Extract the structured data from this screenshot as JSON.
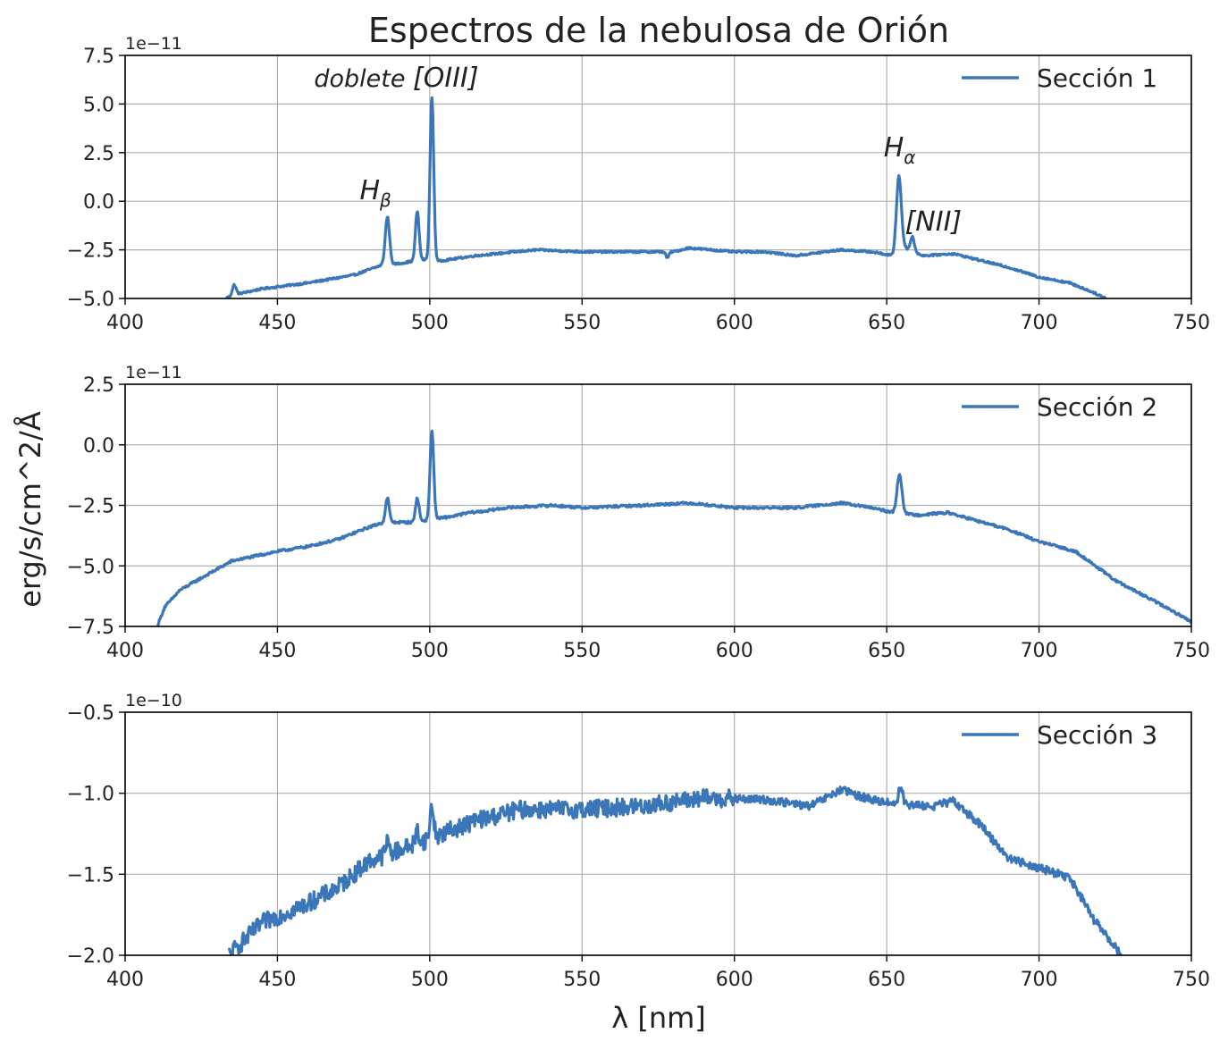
{
  "title": "Espectros de la nebulosa de Orión",
  "ylabel": "erg/s/cm^2/Å",
  "xlabel": "λ [nm]",
  "color": "#3a76b8",
  "chart_data": [
    {
      "type": "line",
      "legend": "Sección 1",
      "legend_position": "top-right",
      "grid": true,
      "exponent_label": "1e−11",
      "xlim": [
        400,
        750
      ],
      "ylim": [
        -5.0,
        7.5
      ],
      "xticks": [
        "400",
        "450",
        "500",
        "550",
        "600",
        "650",
        "700",
        "750"
      ],
      "yticks": [
        "−5.0",
        "−2.5",
        "0.0",
        "2.5",
        "5.0",
        "7.5"
      ],
      "ytick_values": [
        -5.0,
        -2.5,
        0.0,
        2.5,
        5.0,
        7.5
      ],
      "baseline": [
        [
          433,
          -5.0
        ],
        [
          436,
          -4.8
        ],
        [
          445,
          -4.5
        ],
        [
          460,
          -4.2
        ],
        [
          475,
          -3.8
        ],
        [
          484,
          -3.3
        ],
        [
          490,
          -3.2
        ],
        [
          498,
          -3.0
        ],
        [
          502,
          -3.1
        ],
        [
          515,
          -2.8
        ],
        [
          535,
          -2.5
        ],
        [
          550,
          -2.6
        ],
        [
          580,
          -2.6
        ],
        [
          585,
          -2.4
        ],
        [
          600,
          -2.6
        ],
        [
          610,
          -2.6
        ],
        [
          620,
          -2.8
        ],
        [
          635,
          -2.5
        ],
        [
          645,
          -2.6
        ],
        [
          652,
          -2.8
        ],
        [
          656,
          -2.4
        ],
        [
          662,
          -2.8
        ],
        [
          672,
          -2.7
        ],
        [
          690,
          -3.4
        ],
        [
          700,
          -3.9
        ],
        [
          710,
          -4.2
        ],
        [
          718,
          -4.7
        ],
        [
          722,
          -5.0
        ]
      ],
      "peaks": [
        [
          435.8,
          -4.3,
          0.6
        ],
        [
          486.1,
          -0.8,
          0.7
        ],
        [
          495.9,
          -0.5,
          0.6
        ],
        [
          500.7,
          5.4,
          0.6
        ],
        [
          654.0,
          1.3,
          0.8
        ],
        [
          658.4,
          -1.8,
          0.6
        ],
        [
          578.0,
          -2.9,
          0.5
        ]
      ],
      "noise": 0.05,
      "annotations": [
        {
          "name": "annotation-oiii-doublet",
          "prefix": "doblete",
          "text": "[OIII]",
          "x": 462,
          "y": 5.9
        },
        {
          "name": "annotation-h-beta",
          "text": "H",
          "sub": "β",
          "x": 477,
          "y": 0.1
        },
        {
          "name": "annotation-h-alpha",
          "text": "H",
          "sub": "α",
          "x": 649,
          "y": 2.3
        },
        {
          "name": "annotation-nii",
          "text": "[NII]",
          "x": 656,
          "y": -1.5
        }
      ]
    },
    {
      "type": "line",
      "legend": "Sección 2",
      "legend_position": "top-right",
      "grid": true,
      "exponent_label": "1e−11",
      "xlim": [
        400,
        750
      ],
      "ylim": [
        -7.5,
        2.5
      ],
      "xticks": [
        "400",
        "450",
        "500",
        "550",
        "600",
        "650",
        "700",
        "750"
      ],
      "yticks": [
        "−7.5",
        "−5.0",
        "−2.5",
        "0.0",
        "2.5"
      ],
      "ytick_values": [
        -7.5,
        -5.0,
        -2.5,
        0.0,
        2.5
      ],
      "baseline": [
        [
          410.5,
          -7.5
        ],
        [
          413,
          -6.7
        ],
        [
          418,
          -6.0
        ],
        [
          425,
          -5.5
        ],
        [
          435,
          -4.8
        ],
        [
          450,
          -4.4
        ],
        [
          460,
          -4.2
        ],
        [
          470,
          -3.9
        ],
        [
          480,
          -3.4
        ],
        [
          485,
          -3.2
        ],
        [
          495,
          -3.2
        ],
        [
          500,
          -3.1
        ],
        [
          510,
          -2.9
        ],
        [
          525,
          -2.6
        ],
        [
          540,
          -2.5
        ],
        [
          550,
          -2.6
        ],
        [
          570,
          -2.5
        ],
        [
          585,
          -2.4
        ],
        [
          600,
          -2.6
        ],
        [
          620,
          -2.6
        ],
        [
          635,
          -2.4
        ],
        [
          645,
          -2.6
        ],
        [
          652,
          -2.8
        ],
        [
          660,
          -2.9
        ],
        [
          670,
          -2.8
        ],
        [
          690,
          -3.5
        ],
        [
          700,
          -4.0
        ],
        [
          712,
          -4.4
        ],
        [
          725,
          -5.6
        ],
        [
          740,
          -6.6
        ],
        [
          750,
          -7.3
        ]
      ],
      "peaks": [
        [
          486.1,
          -2.2,
          0.6
        ],
        [
          495.9,
          -2.2,
          0.6
        ],
        [
          500.7,
          0.6,
          0.6
        ],
        [
          654.2,
          -1.2,
          0.8
        ],
        [
          513.0,
          -2.8,
          2.0
        ]
      ],
      "noise": 0.05,
      "annotations": []
    },
    {
      "type": "line",
      "legend": "Sección 3",
      "legend_position": "top-right",
      "grid": true,
      "exponent_label": "1e−10",
      "xlim": [
        400,
        750
      ],
      "ylim": [
        -2.0,
        -0.5
      ],
      "xticks": [
        "400",
        "450",
        "500",
        "550",
        "600",
        "650",
        "700",
        "750"
      ],
      "yticks": [
        "−2.0",
        "−1.5",
        "−1.0",
        "−0.5"
      ],
      "ytick_values": [
        -2.0,
        -1.5,
        -1.0,
        -0.5
      ],
      "baseline": [
        [
          434,
          -2.0
        ],
        [
          445,
          -1.8
        ],
        [
          460,
          -1.68
        ],
        [
          470,
          -1.58
        ],
        [
          480,
          -1.42
        ],
        [
          490,
          -1.35
        ],
        [
          500,
          -1.28
        ],
        [
          515,
          -1.17
        ],
        [
          530,
          -1.1
        ],
        [
          550,
          -1.1
        ],
        [
          570,
          -1.08
        ],
        [
          590,
          -1.03
        ],
        [
          610,
          -1.04
        ],
        [
          625,
          -1.08
        ],
        [
          635,
          -0.98
        ],
        [
          645,
          -1.04
        ],
        [
          655,
          -1.07
        ],
        [
          665,
          -1.08
        ],
        [
          672,
          -1.05
        ],
        [
          680,
          -1.18
        ],
        [
          690,
          -1.4
        ],
        [
          700,
          -1.46
        ],
        [
          710,
          -1.52
        ],
        [
          718,
          -1.78
        ],
        [
          727,
          -2.0
        ]
      ],
      "peaks": [
        [
          486.1,
          -1.3,
          0.6
        ],
        [
          495.9,
          -1.23,
          0.6
        ],
        [
          500.7,
          -1.08,
          0.6
        ],
        [
          654.6,
          -0.96,
          0.7
        ]
      ],
      "noise": 0.025,
      "annotations": []
    }
  ]
}
